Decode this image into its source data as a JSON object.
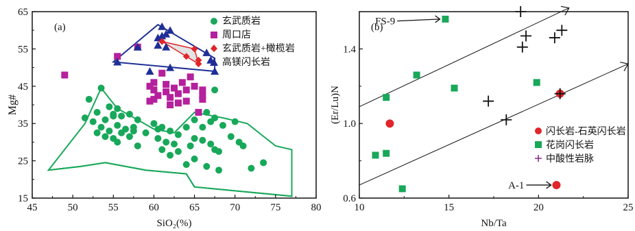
{
  "chart_data": [
    {
      "panel": "(a)",
      "type": "scatter",
      "xlabel": "SiO₂(%)",
      "ylabel": "Mg#",
      "xlim": [
        45,
        80
      ],
      "ylim": [
        15,
        65
      ],
      "xticks": [
        45,
        50,
        55,
        60,
        65,
        70,
        75,
        80
      ],
      "yticks": [
        15,
        25,
        35,
        45,
        55,
        65
      ],
      "legend_position": "top-right",
      "colors": {
        "basalt": "#18a85a",
        "zhoukoudian": "#b5209c",
        "dunite": "#e0262a",
        "diorite": "#1f2f96",
        "field": "#18a85a",
        "field_dunite": "#e0262a"
      },
      "series": [
        {
          "name": "玄武质岩",
          "marker": "circle",
          "points": [
            [
              52.0,
              41.5
            ],
            [
              53.5,
              44.5
            ],
            [
              54.5,
              39.5
            ],
            [
              55.5,
              39.0
            ],
            [
              51.5,
              36.5
            ],
            [
              53.0,
              38.0
            ],
            [
              52.5,
              35.5
            ],
            [
              54.0,
              36.0
            ],
            [
              55.0,
              37.5
            ],
            [
              56.0,
              37.0
            ],
            [
              57.0,
              37.5
            ],
            [
              58.0,
              36.0
            ],
            [
              53.5,
              34.0
            ],
            [
              54.5,
              33.0
            ],
            [
              55.5,
              34.5
            ],
            [
              56.5,
              33.5
            ],
            [
              57.5,
              34.0
            ],
            [
              53.0,
              32.5
            ],
            [
              54.0,
              31.5
            ],
            [
              55.0,
              31.0
            ],
            [
              56.0,
              32.5
            ],
            [
              57.0,
              31.5
            ],
            [
              55.5,
              30.0
            ],
            [
              58.0,
              29.0
            ],
            [
              60.0,
              35.0
            ],
            [
              61.0,
              34.0
            ],
            [
              62.0,
              33.0
            ],
            [
              63.0,
              32.0
            ],
            [
              64.0,
              34.0
            ],
            [
              65.0,
              36.0
            ],
            [
              66.0,
              34.0
            ],
            [
              67.0,
              35.5
            ],
            [
              60.5,
              31.0
            ],
            [
              61.5,
              30.0
            ],
            [
              62.5,
              29.5
            ],
            [
              61.0,
              28.0
            ],
            [
              63.0,
              27.5
            ],
            [
              64.5,
              29.0
            ],
            [
              66.0,
              30.5
            ],
            [
              67.0,
              29.5
            ],
            [
              67.5,
              28.0
            ],
            [
              68.0,
              27.5
            ],
            [
              69.5,
              31.5
            ],
            [
              70.5,
              30.0
            ],
            [
              71.0,
              29.0
            ],
            [
              70.0,
              35.5
            ],
            [
              68.5,
              34.5
            ],
            [
              66.5,
              38.0
            ],
            [
              67.5,
              36.5
            ],
            [
              62.0,
              26.5
            ],
            [
              65.0,
              25.5
            ],
            [
              64.0,
              24.0
            ],
            [
              73.5,
              24.5
            ],
            [
              72.0,
              23.0
            ],
            [
              68.0,
              22.5
            ],
            [
              66.5,
              23.5
            ],
            [
              57.5,
              33.0
            ],
            [
              59.0,
              32.5
            ],
            [
              60.5,
              33.5
            ],
            [
              65.0,
              31.0
            ],
            [
              67.5,
              44.0
            ],
            [
              55.0,
              37.0
            ]
          ]
        },
        {
          "name": "周口店",
          "marker": "square",
          "points": [
            [
              49.0,
              48.0
            ],
            [
              55.5,
              53.0
            ],
            [
              58.0,
              55.5
            ],
            [
              61.0,
              48.5
            ],
            [
              59.5,
              45.0
            ],
            [
              60.0,
              44.0
            ],
            [
              61.5,
              45.5
            ],
            [
              62.5,
              44.5
            ],
            [
              63.5,
              46.0
            ],
            [
              64.5,
              47.5
            ],
            [
              60.0,
              46.0
            ],
            [
              60.5,
              42.5
            ],
            [
              61.5,
              43.5
            ],
            [
              62.0,
              42.0
            ],
            [
              63.0,
              43.0
            ],
            [
              64.0,
              44.0
            ],
            [
              65.0,
              45.0
            ],
            [
              66.0,
              44.0
            ],
            [
              60.0,
              41.5
            ],
            [
              62.0,
              40.0
            ],
            [
              63.0,
              40.5
            ],
            [
              64.0,
              41.0
            ],
            [
              66.0,
              42.5
            ],
            [
              66.0,
              41.5
            ],
            [
              59.5,
              41.0
            ],
            [
              65.5,
              38.0
            ]
          ]
        },
        {
          "name": "玄武质岩+橄榄岩",
          "marker": "diamond",
          "points": [
            [
              61.0,
              57.0
            ],
            [
              64.0,
              53.0
            ],
            [
              65.5,
              52.0
            ],
            [
              65.5,
              51.0
            ],
            [
              65.0,
              55.0
            ]
          ]
        },
        {
          "name": "高镁闪长岩",
          "marker": "triangle",
          "points": [
            [
              55.5,
              51.5
            ],
            [
              58.0,
              55.5
            ],
            [
              59.5,
              49.0
            ],
            [
              60.5,
              58.0
            ],
            [
              61.0,
              61.0
            ],
            [
              61.5,
              59.0
            ],
            [
              60.5,
              56.0
            ],
            [
              61.5,
              55.5
            ],
            [
              62.0,
              60.0
            ],
            [
              62.0,
              50.0
            ],
            [
              66.5,
              54.0
            ],
            [
              67.0,
              52.0
            ],
            [
              67.5,
              49.0
            ],
            [
              61.0,
              58.5
            ]
          ]
        }
      ],
      "polygons": [
        {
          "name": "玄武质岩 field (upper)",
          "points": [
            [
              47,
              22.5
            ],
            [
              51.5,
              35.0
            ],
            [
              53.5,
              44.5
            ],
            [
              55.5,
              39.0
            ],
            [
              58.0,
              36.0
            ],
            [
              60.0,
              33.5
            ],
            [
              62.5,
              32.5
            ],
            [
              65.0,
              38.0
            ],
            [
              68.5,
              36.5
            ],
            [
              71.5,
              35.0
            ],
            [
              75.0,
              29.0
            ],
            [
              77.0,
              28.0
            ],
            [
              77.0,
              15.5
            ],
            [
              65.0,
              18.0
            ],
            [
              64.0,
              21.5
            ],
            [
              59.0,
              22.5
            ],
            [
              54.0,
              24.5
            ],
            [
              51.0,
              23.5
            ],
            [
              47,
              22.5
            ]
          ]
        },
        {
          "name": "玄武质岩 field (inner line)",
          "points": [
            [
              47,
              22.5
            ],
            [
              51.0,
              23.5
            ],
            [
              54.0,
              24.5
            ],
            [
              59.0,
              22.5
            ],
            [
              64.0,
              21.5
            ],
            [
              65.0,
              18.0
            ],
            [
              77.0,
              15.5
            ]
          ]
        },
        {
          "name": "高镁闪长岩 field",
          "points": [
            [
              55.0,
              51.5
            ],
            [
              60.5,
              61.5
            ],
            [
              67.5,
              52.5
            ],
            [
              67.5,
              49.0
            ],
            [
              55.0,
              51.5
            ]
          ]
        },
        {
          "name": "玄武质岩+橄榄岩 field",
          "points": [
            [
              61.0,
              57.0
            ],
            [
              65.0,
              55.0
            ],
            [
              65.5,
              51.0
            ],
            [
              61.0,
              57.0
            ]
          ]
        }
      ]
    },
    {
      "panel": "(b)",
      "type": "scatter",
      "xlabel": "Nb/Ta",
      "ylabel": "(Er/Lu)N",
      "xlim": [
        10,
        25
      ],
      "ylim": [
        0.6,
        1.6
      ],
      "xticks": [
        10,
        15,
        20,
        25
      ],
      "yticks": [
        0.6,
        1.0,
        1.4
      ],
      "legend_position": "bottom-right",
      "colors": {
        "diorite": "#e0262a",
        "granodiorite": "#18a85a",
        "dike": "#8a2d8c",
        "cross": "#111111"
      },
      "series": [
        {
          "name": "闪长岩-石英闪长岩",
          "marker": "circle",
          "points": [
            [
              11.7,
              1.0
            ],
            [
              21.2,
              1.16
            ],
            [
              21.0,
              0.67
            ]
          ]
        },
        {
          "name": "花岗闪长岩",
          "marker": "square",
          "points": [
            [
              14.8,
              1.56
            ],
            [
              13.2,
              1.26
            ],
            [
              15.3,
              1.19
            ],
            [
              11.5,
              1.14
            ],
            [
              10.9,
              0.83
            ],
            [
              11.5,
              0.84
            ],
            [
              12.4,
              0.65
            ],
            [
              19.9,
              1.22
            ]
          ]
        },
        {
          "name": "中酸性岩脉",
          "marker": "plus",
          "points": [
            [
              19.0,
              1.6
            ],
            [
              19.3,
              1.47
            ],
            [
              19.1,
              1.41
            ],
            [
              20.9,
              1.46
            ],
            [
              21.3,
              1.5
            ],
            [
              17.2,
              1.12
            ],
            [
              18.2,
              1.02
            ],
            [
              21.2,
              1.16
            ]
          ]
        }
      ],
      "lines": [
        {
          "from": [
            10,
            1.09
          ],
          "to": [
            21.7,
            1.62
          ]
        },
        {
          "from": [
            10,
            0.67
          ],
          "to": [
            25,
            1.32
          ]
        }
      ],
      "annotations": [
        {
          "text": "FS-9",
          "at": [
            12.0,
            1.55
          ],
          "arrow_to": [
            14.5,
            1.56
          ]
        },
        {
          "text": "A-1",
          "at": [
            19.2,
            0.67
          ],
          "arrow_to": [
            20.7,
            0.67
          ]
        }
      ]
    }
  ]
}
